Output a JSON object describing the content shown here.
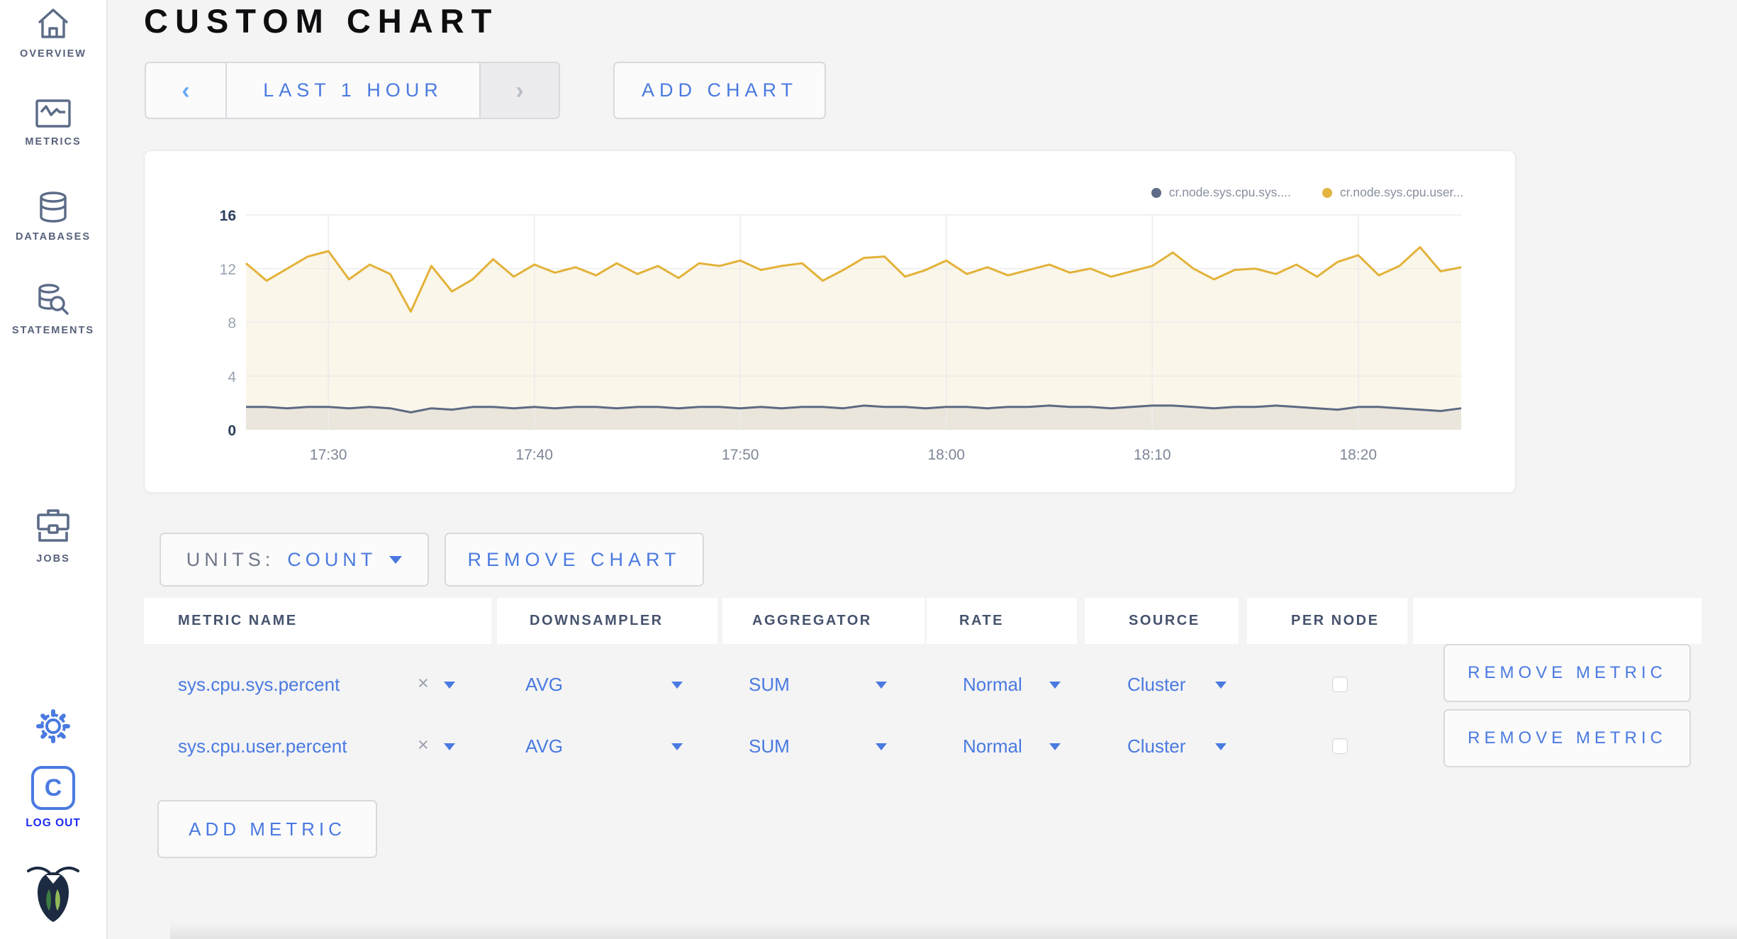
{
  "sidebar": {
    "items": [
      {
        "label": "OVERVIEW"
      },
      {
        "label": "METRICS"
      },
      {
        "label": "DATABASES"
      },
      {
        "label": "STATEMENTS"
      },
      {
        "label": "JOBS"
      }
    ],
    "avatar_letter": "C",
    "logout_label": "LOG OUT"
  },
  "header": {
    "title": "CUSTOM CHART",
    "time_range": "LAST 1 HOUR",
    "prev_arrow": "‹",
    "next_arrow": "›",
    "add_chart_label": "ADD CHART"
  },
  "chart_data": {
    "type": "area",
    "title": "",
    "xlabel": "",
    "ylabel": "",
    "ylim": [
      0,
      16
    ],
    "y_ticks": [
      0,
      4,
      8,
      12,
      16
    ],
    "x_ticks": [
      "17:30",
      "17:40",
      "17:50",
      "18:00",
      "18:10",
      "18:20"
    ],
    "x_start": "17:26",
    "x_end": "18:25",
    "x_tick_offsets_min": [
      4,
      14,
      24,
      34,
      44,
      54
    ],
    "x_span_min": 59,
    "grid": true,
    "legend_position": "top-right",
    "series": [
      {
        "name": "cr.node.sys.cpu.user...",
        "color": "#e3b23a",
        "fill": "#faf6e9",
        "values": [
          12.4,
          11.1,
          12.0,
          12.9,
          13.3,
          11.2,
          12.3,
          11.6,
          8.8,
          12.2,
          10.3,
          11.2,
          12.7,
          11.4,
          12.3,
          11.7,
          12.1,
          11.5,
          12.4,
          11.6,
          12.2,
          11.3,
          12.4,
          12.2,
          12.6,
          11.9,
          12.2,
          12.4,
          11.1,
          11.9,
          12.8,
          12.9,
          11.4,
          11.9,
          12.6,
          11.6,
          12.1,
          11.5,
          11.9,
          12.3,
          11.7,
          12.0,
          11.4,
          11.8,
          12.2,
          13.2,
          12.0,
          11.2,
          11.9,
          12.0,
          11.6,
          12.3,
          11.4,
          12.5,
          13.0,
          11.5,
          12.2,
          13.6,
          11.8,
          12.1
        ]
      },
      {
        "name": "cr.node.sys.cpu.sys....",
        "color": "#5c6a83",
        "fill": "#eae6db",
        "values": [
          1.7,
          1.7,
          1.6,
          1.7,
          1.7,
          1.6,
          1.7,
          1.6,
          1.3,
          1.6,
          1.5,
          1.7,
          1.7,
          1.6,
          1.7,
          1.6,
          1.7,
          1.7,
          1.6,
          1.7,
          1.7,
          1.6,
          1.7,
          1.7,
          1.6,
          1.7,
          1.6,
          1.7,
          1.7,
          1.6,
          1.8,
          1.7,
          1.7,
          1.6,
          1.7,
          1.7,
          1.6,
          1.7,
          1.7,
          1.8,
          1.7,
          1.7,
          1.6,
          1.7,
          1.8,
          1.8,
          1.7,
          1.6,
          1.7,
          1.7,
          1.8,
          1.7,
          1.6,
          1.5,
          1.7,
          1.7,
          1.6,
          1.5,
          1.4,
          1.6
        ]
      }
    ],
    "legend": [
      "cr.node.sys.cpu.sys....",
      "cr.node.sys.cpu.user..."
    ],
    "legend_colors": [
      "#5f6c87",
      "#e4b440"
    ]
  },
  "units": {
    "label": "UNITS:",
    "value": "COUNT"
  },
  "remove_chart_label": "REMOVE CHART",
  "table": {
    "headers": [
      "METRIC NAME",
      "DOWNSAMPLER",
      "AGGREGATOR",
      "RATE",
      "SOURCE",
      "PER NODE"
    ],
    "clear_symbol": "×",
    "rows": [
      {
        "metric": "sys.cpu.sys.percent",
        "downsampler": "AVG",
        "aggregator": "SUM",
        "rate": "Normal",
        "source": "Cluster",
        "per_node": false,
        "action": "REMOVE METRIC"
      },
      {
        "metric": "sys.cpu.user.percent",
        "downsampler": "AVG",
        "aggregator": "SUM",
        "rate": "Normal",
        "source": "Cluster",
        "per_node": false,
        "action": "REMOVE METRIC"
      }
    ]
  },
  "add_metric_label": "ADD METRIC",
  "colors": {
    "accent_blue": "#4a7ae0",
    "logout_blue": "#1e2bf0",
    "sidebar_icon": "#5b6b87",
    "axis_dark": "#2c3e5d",
    "axis_light": "#9aa3b2",
    "x_label": "#7d8698",
    "grid": "#ececec",
    "page_bg": "#f4f4f5"
  }
}
